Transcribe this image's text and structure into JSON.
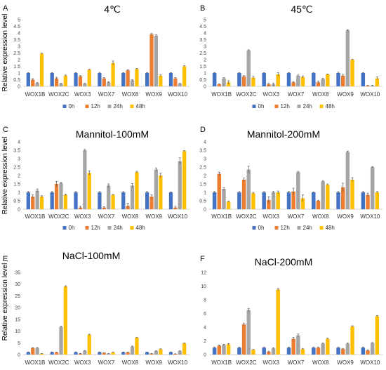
{
  "figure": {
    "ylabel": "Relative expression level",
    "legend": [
      "0h",
      "12h",
      "24h",
      "48h"
    ],
    "colors": [
      "#4472C4",
      "#ED7D31",
      "#A5A5A5",
      "#FFC000"
    ]
  },
  "chart_data": [
    {
      "panel": "A",
      "title": "4℃",
      "type": "bar",
      "categories": [
        "WOX1B",
        "WOX2C",
        "WOX3",
        "WOX7",
        "WOX8",
        "WOX9",
        "WOX10"
      ],
      "ylim": [
        0,
        5
      ],
      "yticks": [
        0,
        0.5,
        1,
        1.5,
        2,
        2.5,
        3,
        3.5,
        4,
        4.5,
        5
      ],
      "legend_position": "bottom",
      "grid": false,
      "series": [
        {
          "name": "0h",
          "values": [
            1.0,
            1.0,
            1.0,
            1.0,
            1.0,
            1.0,
            1.0
          ]
        },
        {
          "name": "12h",
          "values": [
            0.5,
            0.6,
            0.75,
            0.6,
            1.2,
            3.9,
            0.6
          ]
        },
        {
          "name": "24h",
          "values": [
            0.25,
            0.2,
            0.2,
            0.3,
            0.45,
            3.8,
            0.2
          ]
        },
        {
          "name": "48h",
          "values": [
            2.45,
            0.8,
            1.25,
            1.75,
            1.3,
            0.8,
            1.5
          ]
        }
      ],
      "errors": [
        [
          0.03,
          0.03,
          0.03,
          0.05,
          0.03,
          0.03,
          0.03
        ],
        [
          0.08,
          0.08,
          0.05,
          0.05,
          0.05,
          0.06,
          0.05
        ],
        [
          0.03,
          0.03,
          0.03,
          0.05,
          0.05,
          0.06,
          0.03
        ],
        [
          0.03,
          0.05,
          0.03,
          0.15,
          0.05,
          0.06,
          0.05
        ]
      ]
    },
    {
      "panel": "B",
      "title": "45℃",
      "type": "bar",
      "categories": [
        "WOX1B",
        "WOX2C",
        "WOX3",
        "WOX7",
        "WOX8",
        "WOX9",
        "WOX10"
      ],
      "ylim": [
        0,
        5
      ],
      "yticks": [
        0,
        0.5,
        1,
        1.5,
        2,
        2.5,
        3,
        3.5,
        4,
        4.5,
        5
      ],
      "legend_position": "bottom",
      "grid": false,
      "series": [
        {
          "name": "0h",
          "values": [
            1.0,
            1.0,
            1.0,
            1.0,
            1.0,
            1.0,
            1.0
          ]
        },
        {
          "name": "12h",
          "values": [
            0.15,
            0.75,
            0.15,
            0.3,
            0.3,
            0.8,
            0.05
          ]
        },
        {
          "name": "24h",
          "values": [
            0.6,
            2.7,
            0.15,
            0.8,
            0.55,
            4.2,
            0.05
          ]
        },
        {
          "name": "48h",
          "values": [
            0.3,
            0.65,
            0.9,
            0.7,
            0.9,
            2.0,
            0.6
          ]
        }
      ],
      "errors": [
        [
          0.03,
          0.03,
          0.03,
          0.03,
          0.03,
          0.06,
          0.03
        ],
        [
          0.03,
          0.05,
          0.1,
          0.05,
          0.1,
          0.1,
          0.03
        ],
        [
          0.05,
          0.04,
          0.1,
          0.05,
          0.05,
          0.05,
          0.03
        ],
        [
          0.12,
          0.1,
          0.12,
          0.08,
          0.03,
          0.03,
          0.1
        ]
      ]
    },
    {
      "panel": "C",
      "title": "Mannitol-100mM",
      "type": "bar",
      "categories": [
        "WOX1B",
        "WOX2C",
        "WOX3",
        "WOX7",
        "WOX8",
        "WOX9",
        "WOX10"
      ],
      "ylim": [
        0,
        4
      ],
      "yticks": [
        0,
        0.5,
        1,
        1.5,
        2,
        2.5,
        3,
        3.5,
        4
      ],
      "legend_position": "bottom",
      "grid": false,
      "series": [
        {
          "name": "0h",
          "values": [
            1.0,
            1.0,
            1.0,
            1.0,
            1.0,
            1.0,
            1.0
          ]
        },
        {
          "name": "12h",
          "values": [
            0.75,
            1.5,
            0.1,
            0.1,
            0.2,
            0.75,
            0.1
          ]
        },
        {
          "name": "24h",
          "values": [
            1.1,
            1.55,
            3.5,
            1.4,
            1.4,
            2.35,
            2.85
          ]
        },
        {
          "name": "48h",
          "values": [
            0.75,
            0.85,
            2.15,
            0.85,
            2.2,
            2.0,
            3.45
          ]
        }
      ],
      "errors": [
        [
          0.05,
          0.05,
          0.05,
          0.05,
          0.05,
          0.05,
          0.03
        ],
        [
          0.1,
          0.15,
          0.08,
          0.05,
          0.15,
          0.1,
          0.08
        ],
        [
          0.1,
          0.05,
          0.05,
          0.1,
          0.12,
          0.1,
          0.2
        ],
        [
          0.05,
          0.05,
          0.12,
          0.03,
          0.05,
          0.15,
          0.03
        ]
      ]
    },
    {
      "panel": "D",
      "title": "Mannitol-200mM",
      "type": "bar",
      "categories": [
        "WOX1B",
        "WOX2C",
        "WOX3",
        "WOX7",
        "WOX8",
        "WOX9",
        "WOX10"
      ],
      "ylim": [
        0,
        4
      ],
      "yticks": [
        0,
        0.5,
        1,
        1.5,
        2,
        2.5,
        3,
        3.5,
        4
      ],
      "legend_position": "bottom",
      "grid": false,
      "series": [
        {
          "name": "0h",
          "values": [
            1.0,
            1.0,
            1.0,
            1.0,
            1.0,
            1.0,
            1.0
          ]
        },
        {
          "name": "12h",
          "values": [
            2.1,
            1.75,
            0.55,
            1.05,
            0.5,
            1.3,
            0.85
          ]
        },
        {
          "name": "24h",
          "values": [
            1.2,
            2.35,
            1.0,
            2.2,
            1.65,
            3.4,
            2.5
          ]
        },
        {
          "name": "48h",
          "values": [
            0.45,
            0.95,
            1.0,
            0.65,
            1.45,
            1.75,
            1.0
          ]
        }
      ],
      "errors": [
        [
          0.05,
          0.05,
          0.05,
          0.05,
          0.03,
          0.05,
          0.05
        ],
        [
          0.1,
          0.1,
          0.2,
          0.2,
          0.03,
          0.25,
          0.1
        ],
        [
          0.08,
          0.2,
          0.05,
          0.05,
          0.05,
          0.05,
          0.03
        ],
        [
          0.03,
          0.05,
          0.08,
          0.2,
          0.05,
          0.12,
          0.05
        ]
      ]
    },
    {
      "panel": "E",
      "title": "NaCl-100mM",
      "type": "bar",
      "categories": [
        "WOX1B",
        "WOX2C",
        "WOX3",
        "WOX7",
        "WOX8",
        "WOX9",
        "WOX10"
      ],
      "ylim": [
        0,
        35
      ],
      "yticks": [
        0,
        5,
        10,
        15,
        20,
        25,
        30,
        35
      ],
      "legend_position": "bottom",
      "grid": false,
      "series": [
        {
          "name": "0h",
          "values": [
            1.0,
            1.0,
            1.0,
            1.0,
            1.0,
            1.0,
            1.0
          ]
        },
        {
          "name": "12h",
          "values": [
            2.8,
            0.9,
            0.4,
            0.7,
            0.9,
            0.4,
            0.3
          ]
        },
        {
          "name": "24h",
          "values": [
            2.8,
            11.8,
            1.6,
            0.4,
            3.4,
            1.5,
            1.5
          ]
        },
        {
          "name": "48h",
          "values": [
            0.4,
            29.0,
            8.5,
            0.9,
            7.2,
            2.3,
            4.8
          ]
        }
      ],
      "errors": [
        [
          0.1,
          0.1,
          0.1,
          0.1,
          0.1,
          0.1,
          0.1
        ],
        [
          0.15,
          0.1,
          0.05,
          0.05,
          0.1,
          0.05,
          0.05
        ],
        [
          0.2,
          0.3,
          0.1,
          0.05,
          0.2,
          0.1,
          0.1
        ],
        [
          0.05,
          0.3,
          0.2,
          0.1,
          0.2,
          0.15,
          0.15
        ]
      ]
    },
    {
      "panel": "F",
      "title": "NaCl-200mM",
      "type": "bar",
      "categories": [
        "WOX1B",
        "WOX2C",
        "WOX3",
        "WOX7",
        "WOX8",
        "WOX9",
        "WOX10"
      ],
      "ylim": [
        0,
        12
      ],
      "yticks": [
        0,
        2,
        4,
        6,
        8,
        10,
        12
      ],
      "legend_position": "bottom",
      "grid": false,
      "series": [
        {
          "name": "0h",
          "values": [
            1.0,
            1.0,
            1.0,
            1.0,
            1.0,
            1.0,
            1.0
          ]
        },
        {
          "name": "12h",
          "values": [
            1.3,
            4.4,
            0.4,
            2.3,
            1.0,
            0.8,
            0.6
          ]
        },
        {
          "name": "24h",
          "values": [
            1.4,
            6.5,
            0.9,
            2.8,
            1.6,
            1.6,
            1.7
          ]
        },
        {
          "name": "48h",
          "values": [
            1.5,
            0.7,
            9.5,
            0.8,
            2.3,
            4.1,
            5.6
          ]
        }
      ],
      "errors": [
        [
          0.1,
          0.1,
          0.1,
          0.1,
          0.1,
          0.1,
          0.1
        ],
        [
          0.1,
          0.2,
          0.1,
          0.2,
          0.1,
          0.1,
          0.1
        ],
        [
          0.1,
          0.2,
          0.1,
          0.2,
          0.1,
          0.1,
          0.05
        ],
        [
          0.1,
          0.05,
          0.15,
          0.1,
          0.1,
          0.1,
          0.1
        ]
      ]
    }
  ]
}
